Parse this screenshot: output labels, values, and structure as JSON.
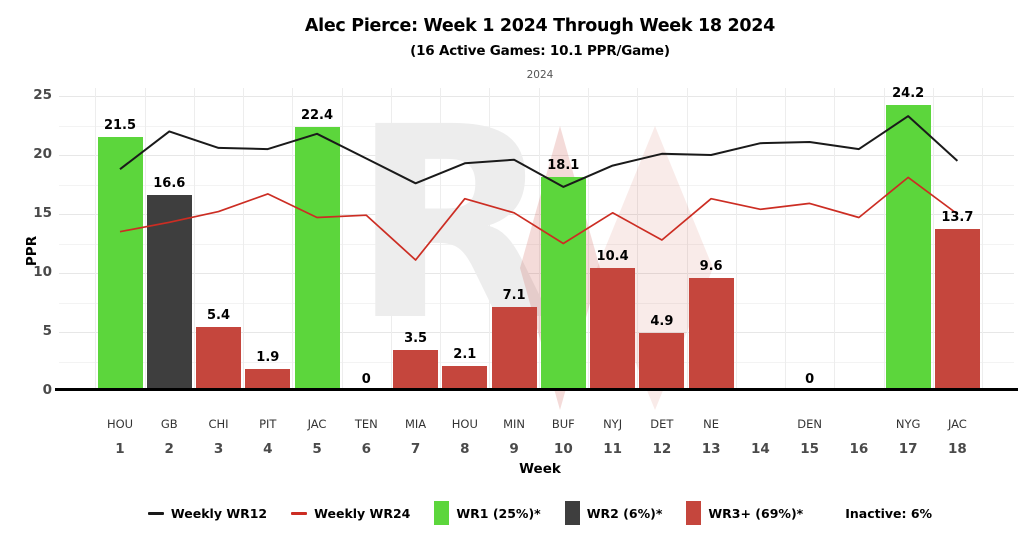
{
  "chart_data": {
    "type": "bar",
    "title": "Alec Pierce: Week 1 2024 Through Week 18 2024",
    "subtitle": "(16 Active Games: 10.1 PPR/Game)",
    "facet_label": "2024",
    "xlabel": "Week",
    "ylabel": "PPR",
    "ylim": [
      0,
      25
    ],
    "yticks": [
      0,
      5,
      10,
      15,
      20,
      25
    ],
    "grid": "on",
    "legend_position": "bottom",
    "weeks": [
      "1",
      "2",
      "3",
      "4",
      "5",
      "6",
      "7",
      "8",
      "9",
      "10",
      "11",
      "12",
      "13",
      "14",
      "15",
      "16",
      "17",
      "18"
    ],
    "opponents": [
      "HOU",
      "GB",
      "CHI",
      "PIT",
      "JAC",
      "TEN",
      "MIA",
      "HOU",
      "MIN",
      "BUF",
      "NYJ",
      "DET",
      "NE",
      "",
      "DEN",
      "",
      "NYG",
      "JAC"
    ],
    "bars": {
      "values": [
        21.5,
        16.6,
        5.4,
        1.9,
        22.4,
        0,
        3.5,
        2.1,
        7.1,
        18.1,
        10.4,
        4.9,
        9.6,
        null,
        0,
        null,
        24.2,
        13.7
      ],
      "labels": [
        "21.5",
        "16.6",
        "5.4",
        "1.9",
        "22.4",
        "0",
        "3.5",
        "2.1",
        "7.1",
        "18.1",
        "10.4",
        "4.9",
        "9.6",
        "",
        "0",
        "",
        "24.2",
        "13.7"
      ],
      "tiers": [
        "wr1",
        "wr2",
        "wr3",
        "wr3",
        "wr1",
        "wr3",
        "wr3",
        "wr3",
        "wr3",
        "wr1",
        "wr3",
        "wr3",
        "wr3",
        null,
        "wr3",
        null,
        "wr1",
        "wr3"
      ]
    },
    "tier_colors": {
      "wr1": "#5cd63c",
      "wr2": "#3e3e3e",
      "wr3": "#c5463d"
    },
    "series": [
      {
        "name": "Weekly WR12",
        "color": "#1a1a1a",
        "values": [
          18.8,
          22.0,
          20.6,
          20.5,
          21.8,
          19.7,
          17.6,
          19.3,
          19.6,
          17.3,
          19.1,
          20.1,
          20.0,
          21.0,
          21.1,
          20.5,
          23.3,
          19.5
        ]
      },
      {
        "name": "Weekly WR24",
        "color": "#cc2d23",
        "values": [
          13.5,
          14.3,
          15.2,
          16.7,
          14.7,
          14.9,
          11.1,
          16.3,
          15.1,
          12.5,
          15.1,
          12.8,
          16.3,
          15.4,
          15.9,
          14.7,
          18.1,
          15.0
        ]
      }
    ],
    "legend": [
      {
        "type": "line",
        "color": "#1a1a1a",
        "label": "Weekly WR12"
      },
      {
        "type": "line",
        "color": "#cc2d23",
        "label": "Weekly WR24"
      },
      {
        "type": "swatch",
        "color": "#5cd63c",
        "label": "WR1 (25%)*"
      },
      {
        "type": "swatch",
        "color": "#3e3e3e",
        "label": "WR2 (6%)*"
      },
      {
        "type": "swatch",
        "color": "#c5463d",
        "label": "WR3+ (69%)*"
      },
      {
        "type": "text",
        "color": "#000000",
        "label": "Inactive: 6%"
      }
    ],
    "watermark": {
      "letter": "R",
      "letter_color": "#ededed",
      "diamond_color": "#c0392b"
    }
  }
}
